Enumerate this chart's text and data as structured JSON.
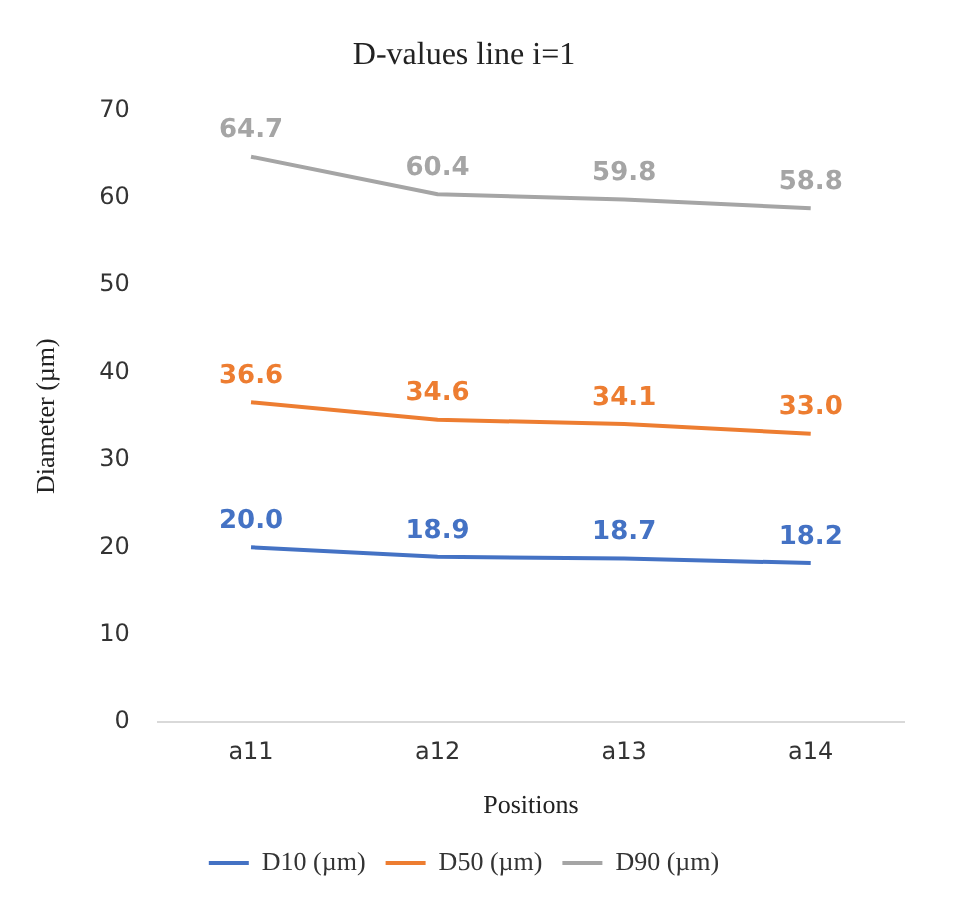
{
  "chart_data": {
    "type": "line",
    "title": "D-values line i=1",
    "xlabel": "Positions",
    "ylabel": "Diameter (µm)",
    "categories": [
      "a11",
      "a12",
      "a13",
      "a14"
    ],
    "series": [
      {
        "name": "D10 (µm)",
        "color": "#4472c4",
        "values": [
          20.0,
          18.9,
          18.7,
          18.2
        ],
        "value_labels": [
          "20.0",
          "18.9",
          "18.7",
          "18.2"
        ]
      },
      {
        "name": "D50 (µm)",
        "color": "#ed7d31",
        "values": [
          36.6,
          34.6,
          34.1,
          33.0
        ],
        "value_labels": [
          "36.6",
          "34.6",
          "34.1",
          "33.0"
        ]
      },
      {
        "name": "D90 (µm)",
        "color": "#a5a5a5",
        "values": [
          64.7,
          60.4,
          59.8,
          58.8
        ],
        "value_labels": [
          "64.7",
          "60.4",
          "59.8",
          "58.8"
        ]
      }
    ],
    "ylim": [
      0,
      70
    ],
    "yticks": [
      0,
      10,
      20,
      30,
      40,
      50,
      60,
      70
    ],
    "grid": false,
    "legend": "bottom",
    "marker": "none",
    "line_style": "solid"
  }
}
